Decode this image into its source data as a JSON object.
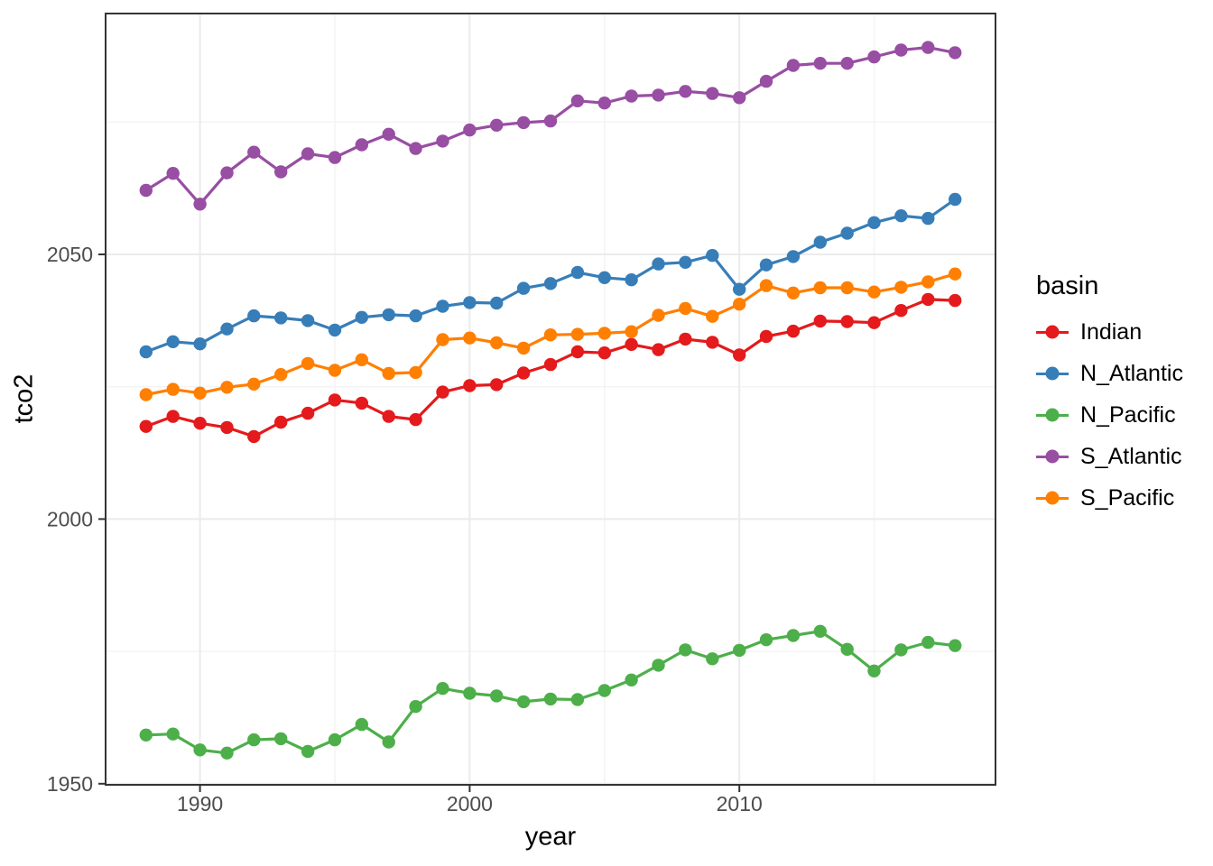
{
  "chart_data": {
    "type": "line",
    "title": "",
    "xlabel": "year",
    "ylabel": "tco2",
    "legend_title": "basin",
    "x": [
      1988,
      1989,
      1990,
      1991,
      1992,
      1993,
      1994,
      1995,
      1996,
      1997,
      1998,
      1999,
      2000,
      2001,
      2002,
      2003,
      2004,
      2005,
      2006,
      2007,
      2008,
      2009,
      2010,
      2011,
      2012,
      2013,
      2014,
      2015,
      2016,
      2017,
      2018
    ],
    "series": [
      {
        "name": "Indian",
        "color": "#E41A1C",
        "values": [
          2017.5,
          2019.4,
          2018.1,
          2017.3,
          2015.6,
          2018.3,
          2020.0,
          2022.5,
          2021.9,
          2019.4,
          2018.8,
          2024.0,
          2025.2,
          2025.4,
          2027.6,
          2029.2,
          2031.6,
          2031.4,
          2033.0,
          2032.0,
          2034.0,
          2033.4,
          2031.0,
          2034.5,
          2035.5,
          2037.4,
          2037.3,
          2037.1,
          2039.4,
          2041.5,
          2041.3
        ]
      },
      {
        "name": "N_Atlantic",
        "color": "#377EB8",
        "values": [
          2031.6,
          2033.5,
          2033.1,
          2035.9,
          2038.4,
          2038.0,
          2037.5,
          2035.7,
          2038.1,
          2038.6,
          2038.4,
          2040.2,
          2040.9,
          2040.8,
          2043.6,
          2044.5,
          2046.6,
          2045.6,
          2045.2,
          2048.2,
          2048.5,
          2049.8,
          2043.4,
          2048.0,
          2049.6,
          2052.3,
          2054.0,
          2056.0,
          2057.3,
          2056.8,
          2060.4
        ]
      },
      {
        "name": "N_Pacific",
        "color": "#4DAF4A",
        "values": [
          1959.2,
          1959.4,
          1956.4,
          1955.8,
          1958.3,
          1958.5,
          1956.1,
          1958.3,
          1961.2,
          1957.9,
          1964.6,
          1968.0,
          1967.1,
          1966.6,
          1965.5,
          1966.0,
          1965.9,
          1967.6,
          1969.6,
          1972.4,
          1975.3,
          1973.6,
          1975.2,
          1977.2,
          1978.0,
          1978.8,
          1975.4,
          1971.3,
          1975.3,
          1976.7,
          1976.1
        ]
      },
      {
        "name": "S_Atlantic",
        "color": "#984EA3",
        "values": [
          2062.1,
          2065.3,
          2059.5,
          2065.4,
          2069.3,
          2065.6,
          2069.0,
          2068.3,
          2070.7,
          2072.7,
          2070.0,
          2071.4,
          2073.5,
          2074.4,
          2074.9,
          2075.2,
          2079.0,
          2078.6,
          2079.9,
          2080.1,
          2080.8,
          2080.4,
          2079.6,
          2082.7,
          2085.7,
          2086.1,
          2086.1,
          2087.3,
          2088.6,
          2089.1,
          2088.1
        ]
      },
      {
        "name": "S_Pacific",
        "color": "#FF7F00",
        "values": [
          2023.5,
          2024.5,
          2023.8,
          2024.9,
          2025.5,
          2027.3,
          2029.4,
          2028.1,
          2030.1,
          2027.5,
          2027.7,
          2033.9,
          2034.2,
          2033.3,
          2032.3,
          2034.8,
          2034.9,
          2035.1,
          2035.4,
          2038.5,
          2039.8,
          2038.3,
          2040.6,
          2044.1,
          2042.7,
          2043.7,
          2043.7,
          2042.9,
          2043.8,
          2044.8,
          2046.3
        ]
      }
    ],
    "axes": {
      "xlim": [
        1986.5,
        2019.5
      ],
      "ylim": [
        1949.8,
        2095.5
      ],
      "x_major_ticks": [
        1990,
        2000,
        2010
      ],
      "x_tick_labels": [
        "1990",
        "2000",
        "2010"
      ],
      "x_minor_gridlines": [
        1995,
        2005,
        2015
      ],
      "y_major_ticks": [
        1950,
        2000,
        2050
      ],
      "y_tick_labels": [
        "1950",
        "2000",
        "2050"
      ],
      "y_minor_gridlines": [
        1975,
        2025,
        2075
      ],
      "grid": true,
      "legend_position": "right"
    },
    "theme": {
      "panel_background": "#FFFFFF",
      "major_grid_color": "#EBEBEB",
      "minor_grid_color": "#F4F4F4",
      "panel_border_color": "#333333",
      "tick_color": "#333333",
      "tick_label_color": "#4D4D4D"
    }
  }
}
